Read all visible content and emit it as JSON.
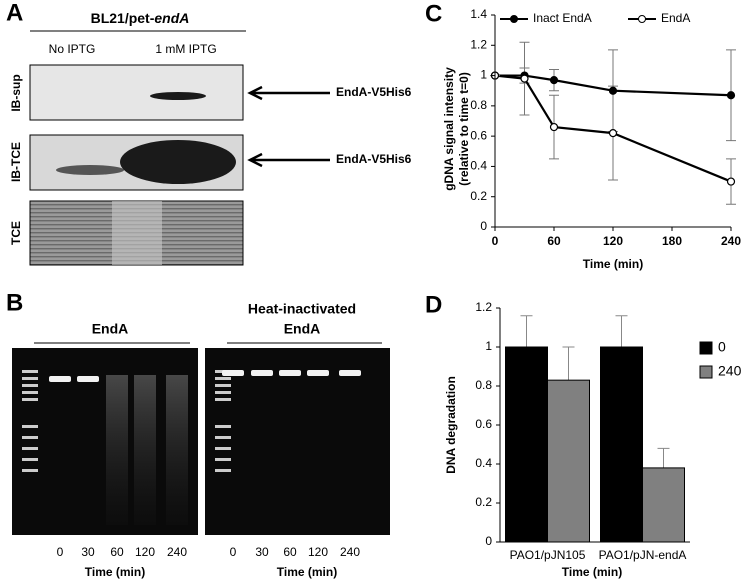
{
  "panels": {
    "A": {
      "label": "A",
      "title": "BL21/pet-",
      "title_italic": "endA",
      "lanes": [
        "No IPTG",
        "1 mM IPTG"
      ],
      "rows": [
        "IB-sup",
        "IB-TCE",
        "TCE"
      ],
      "arrows": [
        "EndA-V5His6",
        "EndA-V5His6"
      ]
    },
    "B": {
      "label": "B",
      "gels": [
        {
          "title": [
            "EndA"
          ],
          "lanes": [
            "0",
            "30",
            "60",
            "120",
            "240"
          ],
          "xlabel": "Time (min)"
        },
        {
          "title": [
            "Heat-inactivated",
            "EndA"
          ],
          "lanes": [
            "0",
            "30",
            "60",
            "120",
            "240"
          ],
          "xlabel": "Time (min)"
        }
      ]
    }
  },
  "chart_data": [
    {
      "type": "line",
      "panel": "C",
      "x": [
        0,
        30,
        60,
        120,
        240
      ],
      "series": [
        {
          "name": "Inact EndA",
          "color": "#000000",
          "marker": "filled",
          "values": [
            1,
            1,
            0.97,
            0.9,
            0.87
          ],
          "errors": [
            0,
            0.05,
            0.07,
            0.27,
            0.3
          ]
        },
        {
          "name": "EndA",
          "color": "#000000",
          "marker": "open",
          "values": [
            1,
            0.98,
            0.66,
            0.62,
            0.3
          ],
          "errors": [
            0,
            0.24,
            0.21,
            0.31,
            0.15
          ]
        }
      ],
      "xlim": [
        0,
        240
      ],
      "xticks": [
        0,
        60,
        120,
        180,
        240
      ],
      "ylim": [
        0,
        1.4
      ],
      "yticks": [
        0,
        0.2,
        0.4,
        0.6,
        0.8,
        1,
        1.2,
        1.4
      ],
      "xlabel": "Time (min)",
      "ylabel": [
        "gDNA signal intensity",
        "(relative to time t=0)"
      ],
      "legend": "top"
    },
    {
      "type": "bar",
      "panel": "D",
      "categories": [
        "PAO1/pJN105",
        "PAO1/pJN-endA"
      ],
      "series": [
        {
          "name": "0",
          "color": "#000000",
          "values": [
            1,
            1
          ],
          "errors": [
            0.16,
            0.16
          ]
        },
        {
          "name": "240",
          "color": "#808080",
          "values": [
            0.83,
            0.38
          ],
          "errors": [
            0.17,
            0.1
          ]
        }
      ],
      "ylim": [
        0,
        1.2
      ],
      "yticks": [
        0,
        0.2,
        0.4,
        0.6,
        0.8,
        1,
        1.2
      ],
      "xlabel": "Time (min)",
      "ylabel": "DNA degradation",
      "legend": "right"
    }
  ]
}
